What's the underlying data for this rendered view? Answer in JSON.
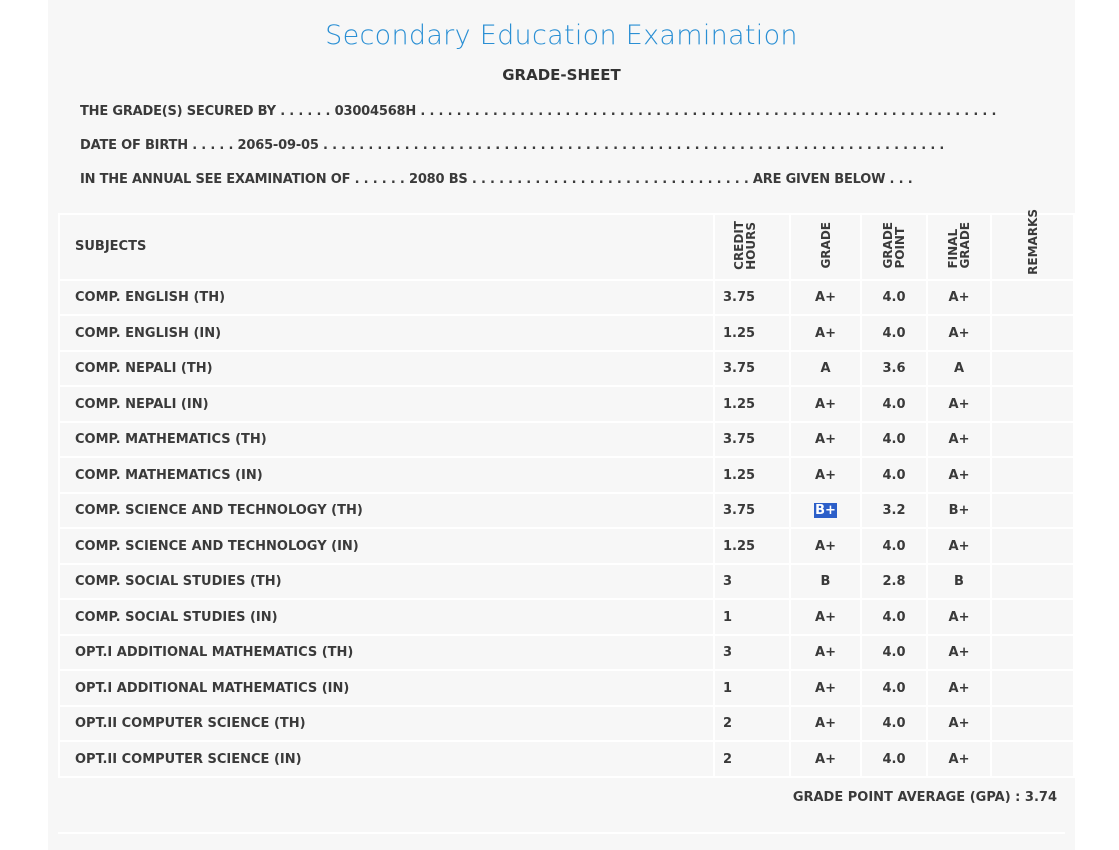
{
  "header": {
    "title": "Secondary Education Examination",
    "subtitle": "GRADE-SHEET"
  },
  "info": {
    "secured_label": "THE GRADE(S) SECURED BY . . . . . .",
    "symbol_no": "03004568H",
    "secured_trail": ". . . . . . . . . . . . . . . . . . . . . . . . . . . . . . . . . . . . . . . . . . . . . . . . . . . . . . . . . . . . . . . .",
    "dob_label": "DATE OF BIRTH . . . . .",
    "dob": "2065-09-05",
    "dob_trail": ". . . . . . . . . . . . . . . . . . . . . . . . . . . . . . . . . . . . . . . . . . . . . . . . . . . . . . . . . . . . . . . . . . . . .",
    "exam_label": "IN THE ANNUAL SEE EXAMINATION OF . . . . . .",
    "exam_year": "2080 BS",
    "exam_trail": ". . . . . . . . . . . . . . . . . . . . . . . . . . . . . . . ARE GIVEN BELOW . . ."
  },
  "table": {
    "headers": {
      "subjects": "SUBJECTS",
      "credit1": "CREDIT",
      "credit2": "HOURS",
      "grade": "GRADE",
      "gp1": "GRADE",
      "gp2": "POINT",
      "fg1": "FINAL",
      "fg2": "GRADE",
      "remarks": "REMARKS"
    },
    "rows": [
      {
        "subject": "COMP. ENGLISH (TH)",
        "credit": "3.75",
        "grade": "A+",
        "gp": "4.0",
        "final": "A+",
        "remarks": ""
      },
      {
        "subject": "COMP. ENGLISH (IN)",
        "credit": "1.25",
        "grade": "A+",
        "gp": "4.0",
        "final": "A+",
        "remarks": ""
      },
      {
        "subject": "COMP. NEPALI (TH)",
        "credit": "3.75",
        "grade": "A",
        "gp": "3.6",
        "final": "A",
        "remarks": ""
      },
      {
        "subject": "COMP. NEPALI (IN)",
        "credit": "1.25",
        "grade": "A+",
        "gp": "4.0",
        "final": "A+",
        "remarks": ""
      },
      {
        "subject": "COMP. MATHEMATICS (TH)",
        "credit": "3.75",
        "grade": "A+",
        "gp": "4.0",
        "final": "A+",
        "remarks": ""
      },
      {
        "subject": "COMP. MATHEMATICS (IN)",
        "credit": "1.25",
        "grade": "A+",
        "gp": "4.0",
        "final": "A+",
        "remarks": ""
      },
      {
        "subject": "COMP. SCIENCE AND TECHNOLOGY (TH)",
        "credit": "3.75",
        "grade": "B+",
        "gp": "3.2",
        "final": "B+",
        "remarks": "",
        "selected": true
      },
      {
        "subject": "COMP. SCIENCE AND TECHNOLOGY (IN)",
        "credit": "1.25",
        "grade": "A+",
        "gp": "4.0",
        "final": "A+",
        "remarks": ""
      },
      {
        "subject": "COMP. SOCIAL STUDIES (TH)",
        "credit": "3",
        "grade": "B",
        "gp": "2.8",
        "final": "B",
        "remarks": ""
      },
      {
        "subject": "COMP. SOCIAL STUDIES (IN)",
        "credit": "1",
        "grade": "A+",
        "gp": "4.0",
        "final": "A+",
        "remarks": ""
      },
      {
        "subject": "OPT.I ADDITIONAL MATHEMATICS (TH)",
        "credit": "3",
        "grade": "A+",
        "gp": "4.0",
        "final": "A+",
        "remarks": ""
      },
      {
        "subject": "OPT.I ADDITIONAL MATHEMATICS (IN)",
        "credit": "1",
        "grade": "A+",
        "gp": "4.0",
        "final": "A+",
        "remarks": ""
      },
      {
        "subject": "OPT.II COMPUTER SCIENCE (TH)",
        "credit": "2",
        "grade": "A+",
        "gp": "4.0",
        "final": "A+",
        "remarks": ""
      },
      {
        "subject": "OPT.II COMPUTER SCIENCE (IN)",
        "credit": "2",
        "grade": "A+",
        "gp": "4.0",
        "final": "A+",
        "remarks": ""
      }
    ]
  },
  "gpa": {
    "label": "GRADE POINT AVERAGE (GPA) :",
    "value": "3.74"
  },
  "colors": {
    "title": "#2a8fd4",
    "selection": "#2c5fc9",
    "panel": "#f7f7f7"
  }
}
